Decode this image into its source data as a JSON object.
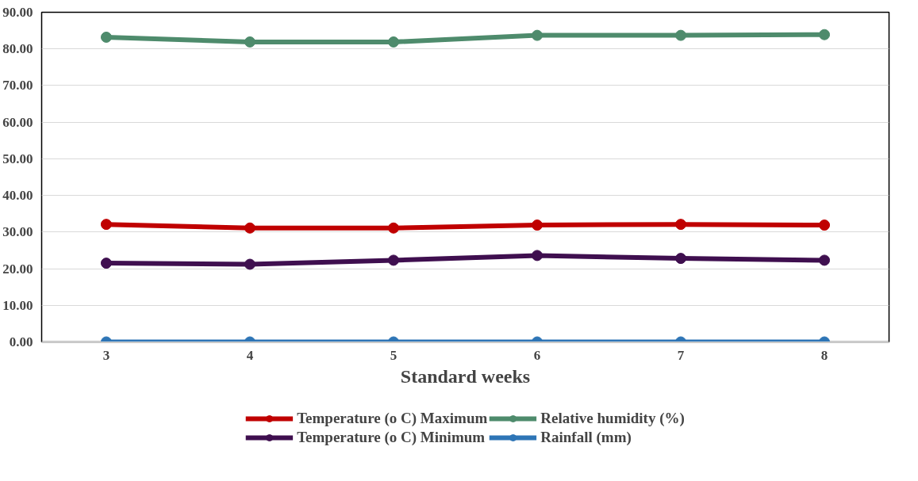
{
  "chart_data": {
    "type": "line",
    "xlabel": "Standard weeks",
    "categories": [
      "3",
      "4",
      "5",
      "6",
      "7",
      "8"
    ],
    "series": [
      {
        "name": "Temperature (o C) Maximum",
        "color": "#c00000",
        "values": [
          32.1,
          31.1,
          31.1,
          31.9,
          32.1,
          31.9
        ]
      },
      {
        "name": "Temperature (o C) Minimum",
        "color": "#3f0f4f",
        "values": [
          21.5,
          21.2,
          22.3,
          23.6,
          22.8,
          22.3
        ]
      },
      {
        "name": "Relative humidity (%)",
        "color": "#4e8b6c",
        "values": [
          83.2,
          81.9,
          81.9,
          83.7,
          83.7,
          83.9
        ]
      },
      {
        "name": "Rainfall (mm)",
        "color": "#2e75b6",
        "values": [
          0.0,
          0.0,
          0.0,
          0.0,
          0.0,
          0.0
        ]
      }
    ],
    "ylim": [
      0,
      90
    ],
    "yticks": [
      {
        "value": 0,
        "label": "0.00"
      },
      {
        "value": 10,
        "label": "10.00"
      },
      {
        "value": 20,
        "label": "20.00"
      },
      {
        "value": 30,
        "label": "30.00"
      },
      {
        "value": 40,
        "label": "40.00"
      },
      {
        "value": 50,
        "label": "50.00"
      },
      {
        "value": 60,
        "label": "60.00"
      },
      {
        "value": 70,
        "label": "70.00"
      },
      {
        "value": 80,
        "label": "80.00"
      },
      {
        "value": 90,
        "label": "90.00"
      }
    ],
    "grid": "y",
    "legend": "bottom",
    "marker": "circle",
    "line_style": "solid"
  }
}
